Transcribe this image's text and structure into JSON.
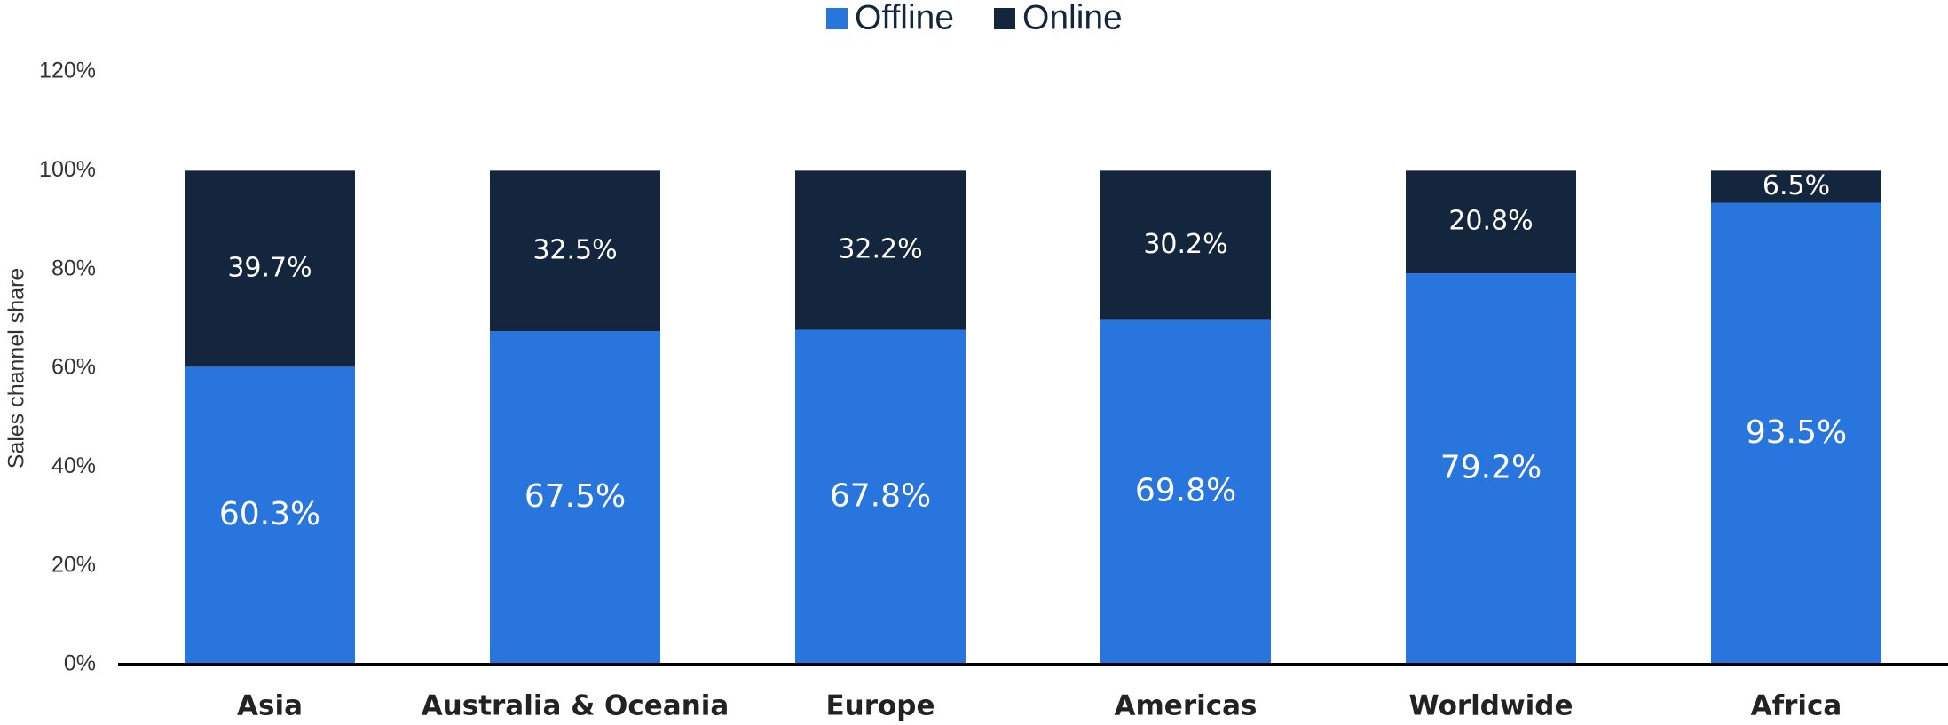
{
  "chart_data": {
    "type": "stacked-bar",
    "y_label": "Sales channel share",
    "categories": [
      "Asia",
      "Australia & Oceania",
      "Europe",
      "Americas",
      "Worldwide",
      "Africa"
    ],
    "series": [
      {
        "name": "Offline",
        "color": "#2975de",
        "values": [
          60.3,
          67.5,
          67.8,
          69.8,
          79.2,
          93.5
        ],
        "value_labels": [
          "60.3%",
          "67.5%",
          "67.8%",
          "69.8%",
          "79.2%",
          "93.5%"
        ]
      },
      {
        "name": "Online",
        "color": "#13263d",
        "values": [
          39.7,
          32.5,
          32.2,
          30.2,
          20.8,
          6.5
        ],
        "value_labels": [
          "39.7%",
          "32.5%",
          "32.2%",
          "30.2%",
          "20.8%",
          "6.5%"
        ]
      }
    ],
    "ylim": [
      0,
      120
    ],
    "yticks": [
      {
        "value": 0,
        "label": "0%"
      },
      {
        "value": 20,
        "label": "20%"
      },
      {
        "value": 40,
        "label": "40%"
      },
      {
        "value": 60,
        "label": "60%"
      },
      {
        "value": 80,
        "label": "80%"
      },
      {
        "value": 100,
        "label": "100%"
      },
      {
        "value": 120,
        "label": "120%"
      }
    ],
    "legend": "top",
    "grid": false
  }
}
